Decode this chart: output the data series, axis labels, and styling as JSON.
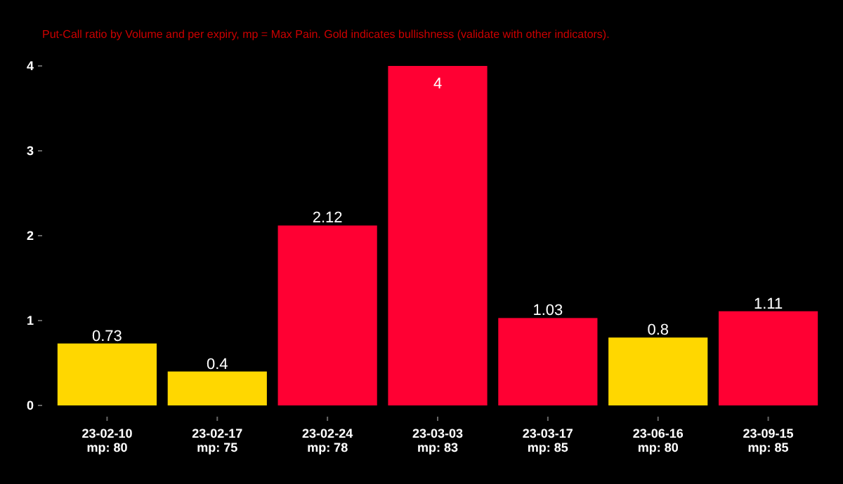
{
  "chart_data": {
    "type": "bar",
    "subtitle": "Put-Call ratio by Volume and per expiry, mp = Max Pain. Gold indicates bullishness (validate with other indicators).",
    "categories": [
      "23-02-10\nmp: 80",
      "23-02-17\nmp: 75",
      "23-02-24\nmp: 78",
      "23-03-03\nmp: 83",
      "23-03-17\nmp: 85",
      "23-06-16\nmp: 80",
      "23-09-15\nmp: 85"
    ],
    "values": [
      0.73,
      0.4,
      2.12,
      4,
      1.03,
      0.8,
      1.11
    ],
    "colors": [
      "#ffd700",
      "#ffd700",
      "#ff0033",
      "#ff0033",
      "#ff0033",
      "#ffd700",
      "#ff0033"
    ],
    "ylim": [
      0,
      4
    ],
    "yticks": [
      0,
      1,
      2,
      3,
      4
    ],
    "grid": false,
    "data_labels": true
  }
}
